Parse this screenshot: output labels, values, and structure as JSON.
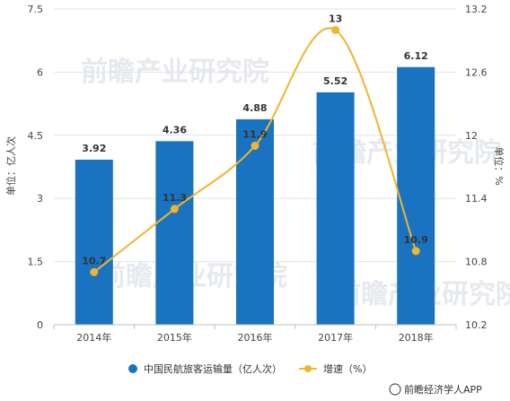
{
  "chart_data": {
    "type": "bar+line",
    "categories": [
      "2014年",
      "2015年",
      "2016年",
      "2017年",
      "2018年"
    ],
    "series": [
      {
        "name": "中国民航旅客运输量（亿人次）",
        "type": "bar",
        "axis": "left",
        "color": "#1a73c1",
        "values": [
          3.92,
          4.36,
          4.88,
          5.52,
          6.12
        ],
        "labels": [
          "3.92",
          "4.36",
          "4.88",
          "5.52",
          "6.12"
        ]
      },
      {
        "name": "增速（%）",
        "type": "line",
        "axis": "right",
        "color": "#f0b52c",
        "values": [
          10.7,
          11.3,
          11.9,
          13,
          10.9
        ],
        "labels": [
          "10.7",
          "11.3",
          "11.9",
          "13",
          "10.9"
        ]
      }
    ],
    "y_left": {
      "label": "单位：亿人次",
      "ylim": [
        0,
        7.5
      ],
      "ticks": [
        "0",
        "1.5",
        "3",
        "4.5",
        "6",
        "7.5"
      ]
    },
    "y_right": {
      "label": "单位：%",
      "ylim": [
        10.2,
        13.2
      ],
      "ticks": [
        "10.2",
        "10.8",
        "11.4",
        "12",
        "12.6",
        "13.2"
      ]
    },
    "grid": true,
    "legend_position": "bottom"
  },
  "watermark": {
    "text": "前瞻产业研究院"
  },
  "source": "前瞻经济学人APP",
  "colors": {
    "bar": "#1a73c1",
    "line": "#f0b52c",
    "grid": "#e3e3e3"
  }
}
